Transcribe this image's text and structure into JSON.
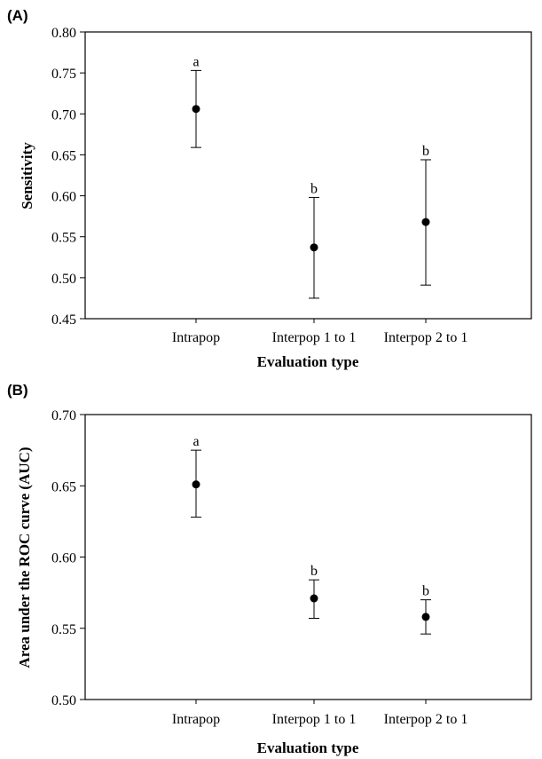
{
  "chart_data": [
    {
      "panel_label": "(A)",
      "type": "scatter",
      "categories": [
        "Intrapop",
        "Interpop 1 to 1",
        "Interpop 2 to 1"
      ],
      "values": [
        0.706,
        0.537,
        0.568
      ],
      "error_lower": [
        0.659,
        0.475,
        0.491
      ],
      "error_upper": [
        0.753,
        0.598,
        0.644
      ],
      "significance_letters": [
        "a",
        "b",
        "b"
      ],
      "xlabel": "Evaluation type",
      "ylabel": "Sensitivity",
      "ylim": [
        0.45,
        0.8
      ],
      "yticks": [
        "0.45",
        "0.50",
        "0.55",
        "0.60",
        "0.65",
        "0.70",
        "0.75",
        "0.80"
      ],
      "grid": false,
      "marker": "filled-circle",
      "color": "#000000"
    },
    {
      "panel_label": "(B)",
      "type": "scatter",
      "categories": [
        "Intrapop",
        "Interpop 1 to 1",
        "Interpop 2 to 1"
      ],
      "values": [
        0.651,
        0.571,
        0.558
      ],
      "error_lower": [
        0.628,
        0.557,
        0.546
      ],
      "error_upper": [
        0.675,
        0.584,
        0.57
      ],
      "significance_letters": [
        "a",
        "b",
        "b"
      ],
      "xlabel": "Evaluation type",
      "ylabel": "Area under the ROC curve (AUC)",
      "ylim": [
        0.5,
        0.7
      ],
      "yticks": [
        "0.50",
        "0.55",
        "0.60",
        "0.65",
        "0.70"
      ],
      "grid": false,
      "marker": "filled-circle",
      "color": "#000000"
    }
  ]
}
